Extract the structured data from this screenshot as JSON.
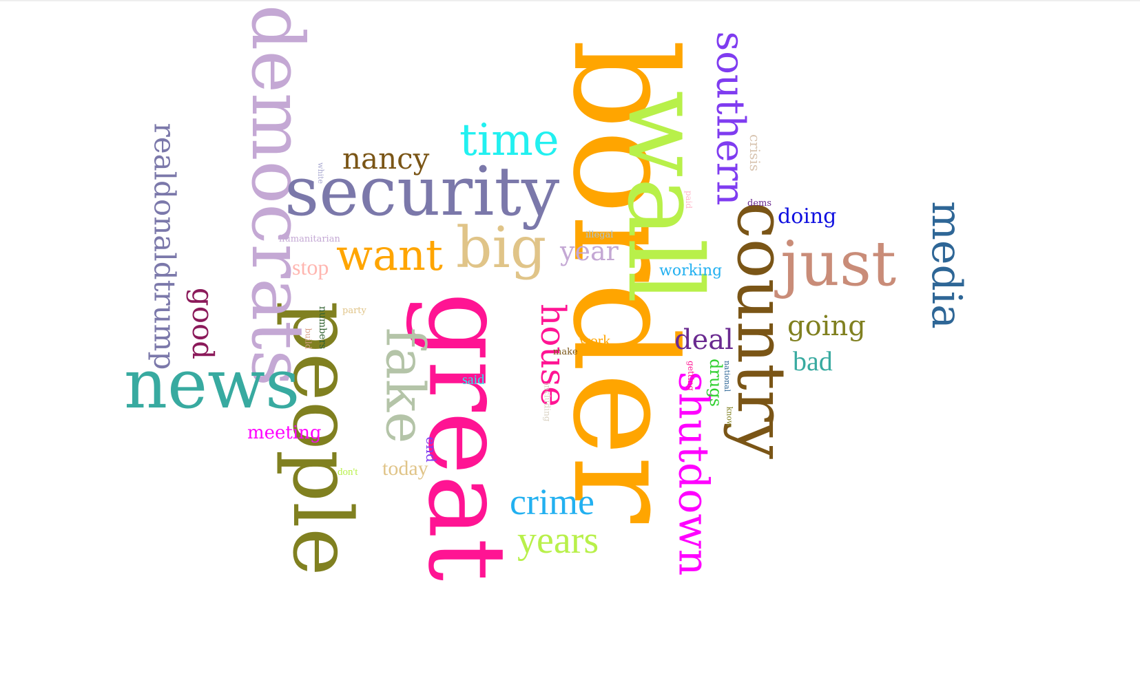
{
  "words": [
    {
      "text": "border",
      "color": "#ffa500"
    },
    {
      "text": "wall",
      "color": "#b8f04a"
    },
    {
      "text": "great",
      "color": "#ff1493"
    },
    {
      "text": "people",
      "color": "#808020"
    },
    {
      "text": "democrats",
      "color": "#c4a8d4"
    },
    {
      "text": "security",
      "color": "#7b78aa"
    },
    {
      "text": "news",
      "color": "#38aaa0"
    },
    {
      "text": "country",
      "color": "#7a5516"
    },
    {
      "text": "just",
      "color": "#c98c78"
    },
    {
      "text": "fake",
      "color": "#b4c4a8"
    },
    {
      "text": "big",
      "color": "#e0c488"
    },
    {
      "text": "time",
      "color": "#22f0f0"
    },
    {
      "text": "want",
      "color": "#ffa500"
    },
    {
      "text": "shutdown",
      "color": "#ff00ff"
    },
    {
      "text": "southern",
      "color": "#7f3cf0"
    },
    {
      "text": "media",
      "color": "#2e6696"
    },
    {
      "text": "crime",
      "color": "#22b0f0"
    },
    {
      "text": "years",
      "color": "#b8f04a"
    },
    {
      "text": "house",
      "color": "#ff1493"
    },
    {
      "text": "nancy",
      "color": "#7a5516"
    },
    {
      "text": "realdonaldtrump",
      "color": "#7b78aa"
    },
    {
      "text": "good",
      "color": "#8b1a5a"
    },
    {
      "text": "going",
      "color": "#808020"
    },
    {
      "text": "deal",
      "color": "#6a2a90"
    },
    {
      "text": "bad",
      "color": "#38aaa0"
    },
    {
      "text": "year",
      "color": "#c4a8d4"
    },
    {
      "text": "doing",
      "color": "#1010e0"
    },
    {
      "text": "stop",
      "color": "#ffb6b0"
    },
    {
      "text": "meeting",
      "color": "#ff00ff"
    },
    {
      "text": "today",
      "color": "#e0c488"
    },
    {
      "text": "working",
      "color": "#22b0f0"
    },
    {
      "text": "drugs",
      "color": "#30d030"
    },
    {
      "text": "work",
      "color": "#ffa500"
    },
    {
      "text": "said",
      "color": "#22f0f0"
    },
    {
      "text": "end",
      "color": "#7f3cf0"
    },
    {
      "text": "crisis",
      "color": "#d8c4b0"
    },
    {
      "text": "dems",
      "color": "#6a2a90"
    },
    {
      "text": "paid",
      "color": "#ffb6c8"
    },
    {
      "text": "illegal",
      "color": "#a8c4d8"
    },
    {
      "text": "humanitarian",
      "color": "#c4a8d4"
    },
    {
      "text": "white",
      "color": "#a8a8d0"
    },
    {
      "text": "party",
      "color": "#e0c488"
    },
    {
      "text": "numbers",
      "color": "#306030"
    },
    {
      "text": "build",
      "color": "#d8a088"
    },
    {
      "text": "make",
      "color": "#7a5516"
    },
    {
      "text": "including",
      "color": "#d8d0c0"
    },
    {
      "text": "don't",
      "color": "#b8f04a"
    },
    {
      "text": "getting",
      "color": "#ff1493"
    },
    {
      "text": "national",
      "color": "#2e6696"
    },
    {
      "text": "know",
      "color": "#808020"
    }
  ]
}
